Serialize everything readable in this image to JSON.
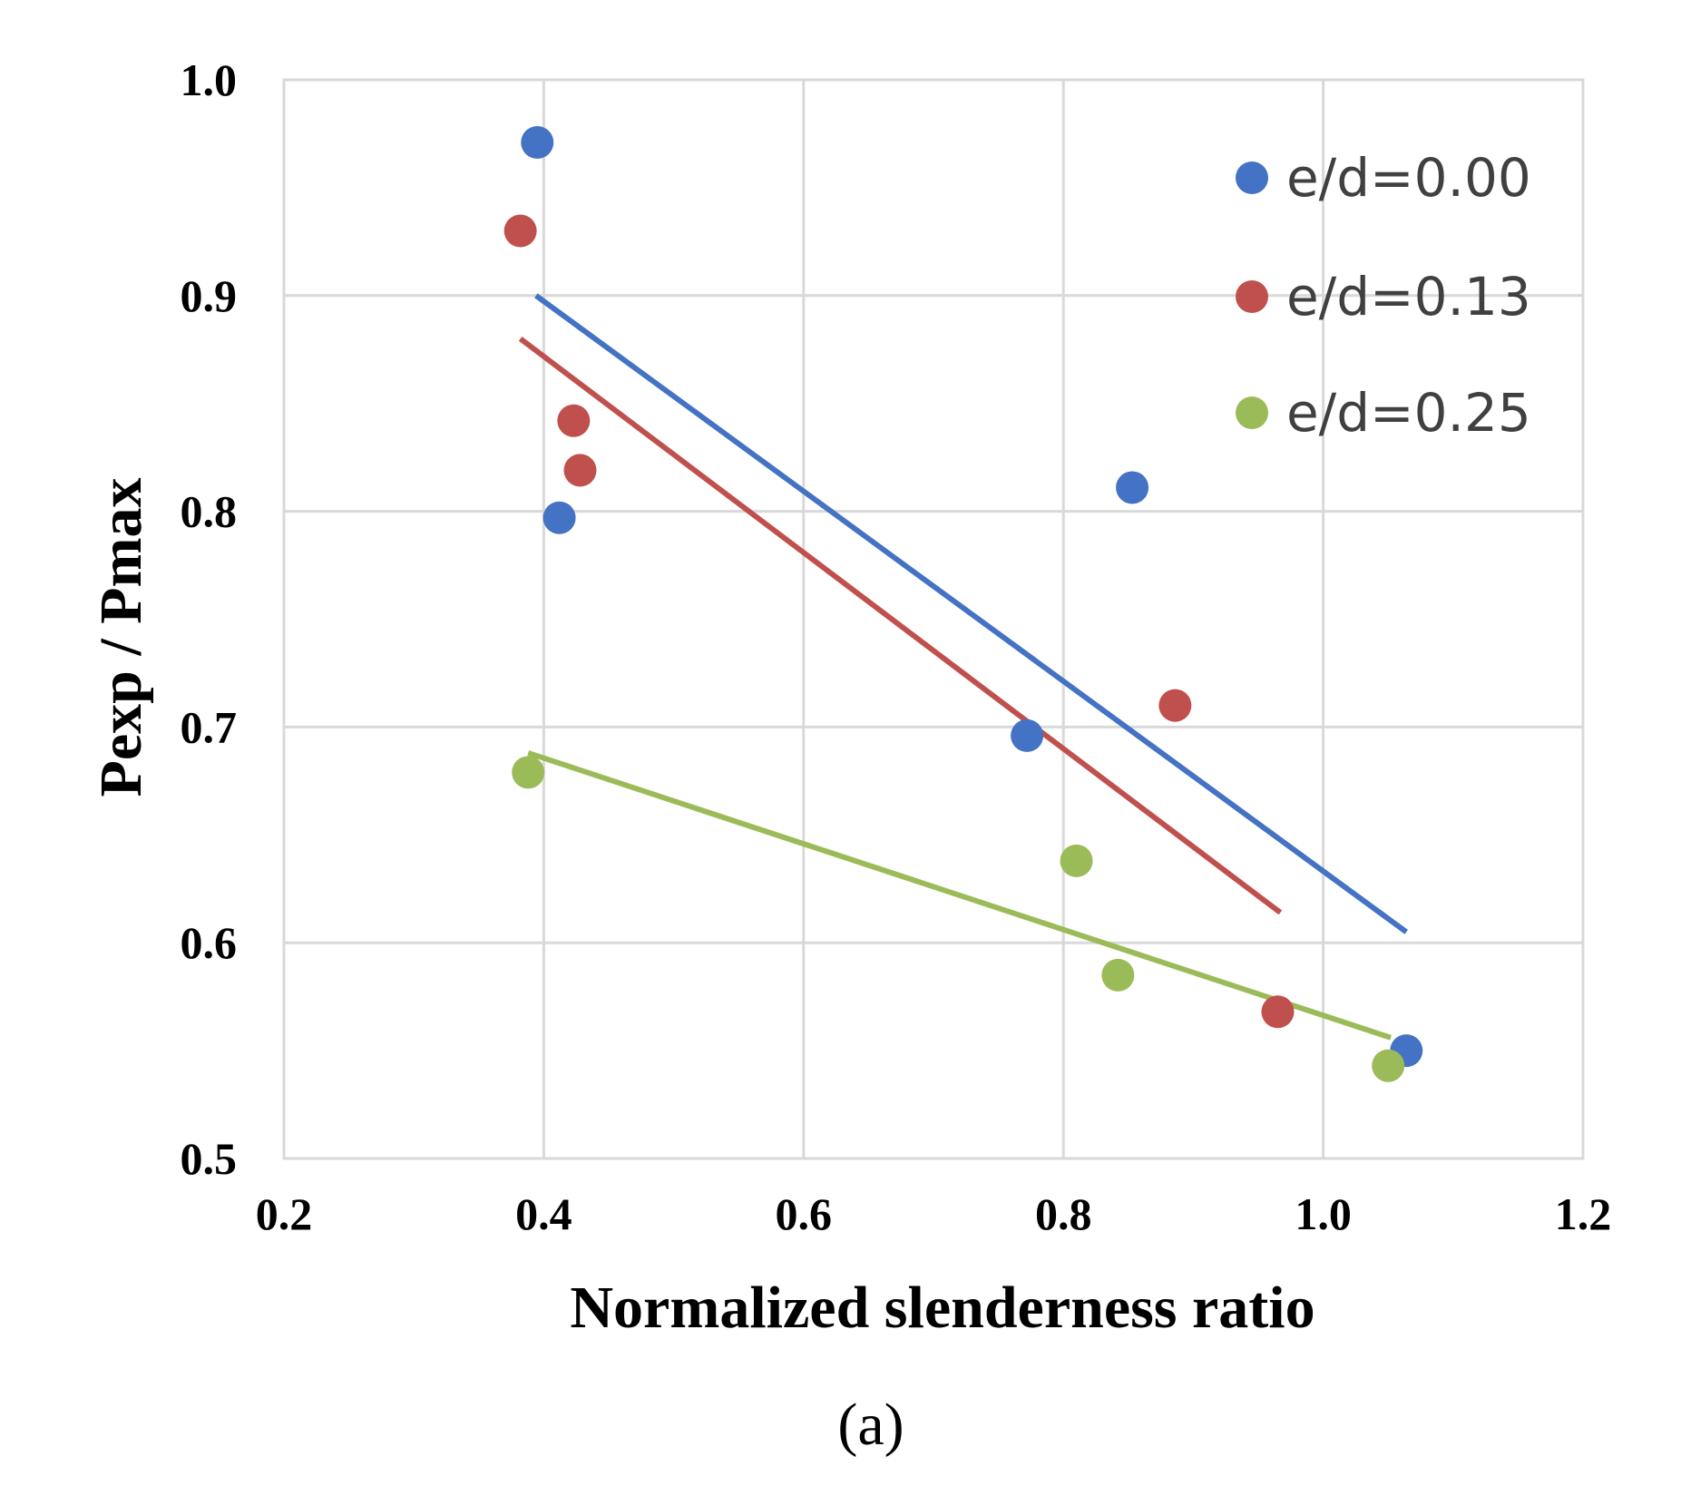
{
  "chart_data": {
    "type": "scatter",
    "title": "",
    "xlabel": "Normalized slenderness ratio",
    "ylabel": "Pexp / Pmax",
    "xlim": [
      0.2,
      1.2
    ],
    "ylim": [
      0.5,
      1.0
    ],
    "xticks": [
      "0.2",
      "0.4",
      "0.6",
      "0.8",
      "1.0",
      "1.2"
    ],
    "yticks": [
      "0.5",
      "0.6",
      "0.7",
      "0.8",
      "0.9",
      "1.0"
    ],
    "grid": true,
    "legend_position": "top-right",
    "series": [
      {
        "name": "e/d=0.00",
        "color": "#4472C4",
        "points": [
          {
            "x": 0.395,
            "y": 0.971
          },
          {
            "x": 0.412,
            "y": 0.797
          },
          {
            "x": 0.772,
            "y": 0.696
          },
          {
            "x": 0.853,
            "y": 0.811
          },
          {
            "x": 1.064,
            "y": 0.55
          }
        ],
        "trend": [
          {
            "x": 0.394,
            "y": 0.9
          },
          {
            "x": 1.064,
            "y": 0.605
          }
        ]
      },
      {
        "name": "e/d=0.13",
        "color": "#C0504D",
        "points": [
          {
            "x": 0.382,
            "y": 0.93
          },
          {
            "x": 0.423,
            "y": 0.842
          },
          {
            "x": 0.428,
            "y": 0.819
          },
          {
            "x": 0.886,
            "y": 0.71
          },
          {
            "x": 0.965,
            "y": 0.568
          }
        ],
        "trend": [
          {
            "x": 0.382,
            "y": 0.88
          },
          {
            "x": 0.967,
            "y": 0.614
          }
        ]
      },
      {
        "name": "e/d=0.25",
        "color": "#9BBB59",
        "points": [
          {
            "x": 0.388,
            "y": 0.679
          },
          {
            "x": 0.81,
            "y": 0.638
          },
          {
            "x": 0.842,
            "y": 0.585
          },
          {
            "x": 1.05,
            "y": 0.543
          }
        ],
        "trend": [
          {
            "x": 0.388,
            "y": 0.688
          },
          {
            "x": 1.052,
            "y": 0.556
          }
        ]
      }
    ]
  },
  "caption": "(a)"
}
